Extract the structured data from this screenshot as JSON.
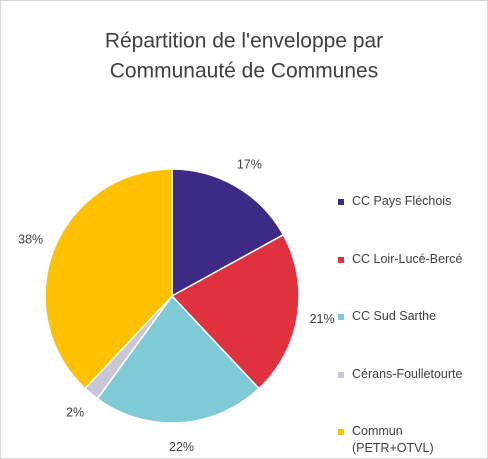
{
  "chart_data": {
    "type": "pie",
    "title": [
      "Répartition de l'enveloppe par",
      "Communauté de Communes"
    ],
    "categories": [
      "CC Pays Fléchois",
      "CC Loir-Lucé-Bercé",
      "CC Sud Sarthe",
      "Cérans-Foulletourte",
      "Commun (PETR+OTVL)"
    ],
    "values": [
      17,
      21,
      22,
      2,
      38
    ],
    "value_labels": [
      "17%",
      "21%",
      "22%",
      "2%",
      "38%"
    ],
    "colors": [
      "#3c2a84",
      "#e0313f",
      "#7ecad6",
      "#c9c6d8",
      "#ffc000"
    ]
  }
}
